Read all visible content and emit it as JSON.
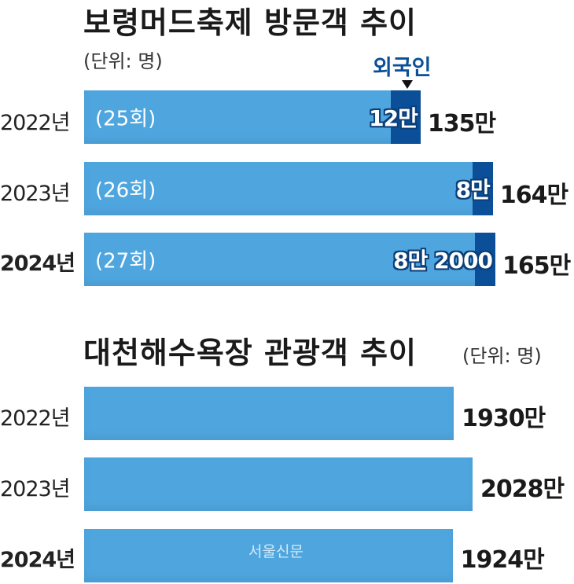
{
  "chart_data": [
    {
      "type": "bar",
      "orientation": "horizontal",
      "title": "보령머드축제 방문객 추이",
      "unit": "(단위: 명)",
      "legend": "외국인",
      "categories": [
        "2022년",
        "2023년",
        "2024년"
      ],
      "editions": [
        "(25회)",
        "(26회)",
        "(27회)"
      ],
      "series": [
        {
          "name": "",
          "values": [
            1350000,
            1640000,
            1650000
          ],
          "labels": [
            "135만",
            "164만",
            "165만"
          ],
          "color": "#4fa6df"
        },
        {
          "name": "외국인",
          "values": [
            120000,
            80000,
            82000
          ],
          "labels": [
            "12만",
            "8만",
            "8만 2000"
          ],
          "color": "#0a4f97"
        }
      ]
    },
    {
      "type": "bar",
      "orientation": "horizontal",
      "title": "대천해수욕장 관광객 추이",
      "unit": "(단위: 명)",
      "categories": [
        "2022년",
        "2023년",
        "2024년"
      ],
      "series": [
        {
          "name": "",
          "values": [
            19300000,
            20280000,
            19240000
          ],
          "labels": [
            "1930만",
            "2028만",
            "1924만"
          ],
          "color": "#4fa6df"
        }
      ]
    }
  ],
  "watermark": "서울신문"
}
